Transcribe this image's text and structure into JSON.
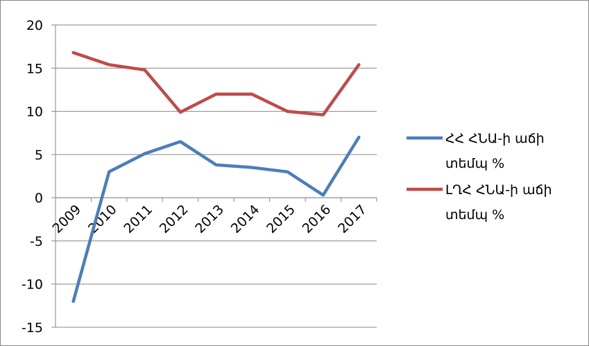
{
  "chart_data": {
    "type": "line",
    "categories": [
      "2009",
      "2010",
      "2011",
      "2012",
      "2013",
      "2014",
      "2015",
      "2016",
      "2017"
    ],
    "series": [
      {
        "name": "ՀՀ ՀՆԱ-ի աճի տեմպ %",
        "name_lines": [
          "ՀՀ ՀՆԱ-ի աճի",
          "տեմպ %"
        ],
        "color": "#4a7ebb",
        "values": [
          -12,
          3,
          5.1,
          6.5,
          3.8,
          3.5,
          3.0,
          0.3,
          7.0
        ]
      },
      {
        "name": "ԼՂՀ ՀՆԱ-ի աճի տեմպ %",
        "name_lines": [
          "ԼՂՀ ՀՆԱ-ի աճի",
          "տեմպ %"
        ],
        "color": "#be4b48",
        "values": [
          16.8,
          15.4,
          14.8,
          9.9,
          12.0,
          12.0,
          10.0,
          9.6,
          15.4
        ]
      }
    ],
    "y_ticks": [
      "20",
      "15",
      "10",
      "5",
      "0",
      "-5",
      "-10",
      "-15"
    ],
    "ylim": [
      -15,
      20
    ],
    "grid": true,
    "legend_position": "right"
  }
}
